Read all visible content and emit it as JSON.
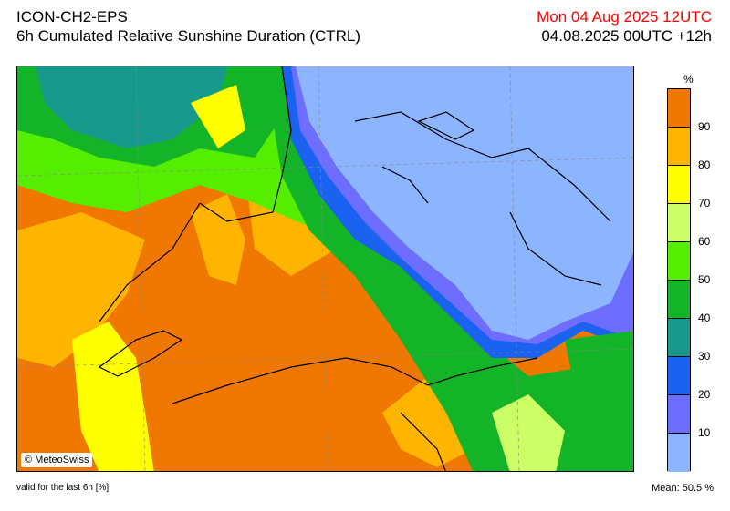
{
  "header": {
    "model": "ICON-CH2-EPS",
    "product": "6h Cumulated Relative Sunshine Duration (CTRL)",
    "run_time": "Mon 04 Aug 2025 12UTC",
    "valid_time": "04.08.2025 00UTC +12h"
  },
  "map": {
    "copyright": "© MeteoSwiss"
  },
  "legend": {
    "unit": "%",
    "ticks": [
      "90",
      "80",
      "70",
      "60",
      "50",
      "40",
      "30",
      "20",
      "10"
    ],
    "bands": [
      {
        "range": "90-100",
        "color": "#f07800"
      },
      {
        "range": "80-90",
        "color": "#ffb400"
      },
      {
        "range": "70-80",
        "color": "#ffff00"
      },
      {
        "range": "60-70",
        "color": "#ccff66"
      },
      {
        "range": "50-60",
        "color": "#55ee00"
      },
      {
        "range": "40-50",
        "color": "#14b428"
      },
      {
        "range": "30-40",
        "color": "#179a8c"
      },
      {
        "range": "20-30",
        "color": "#1a62f0"
      },
      {
        "range": "10-20",
        "color": "#6d6dff"
      },
      {
        "range": "0-10",
        "color": "#8cb4ff"
      }
    ]
  },
  "footer": {
    "validity_note": "valid for the last 6h [%]",
    "mean": "Mean:  50.5 %"
  }
}
